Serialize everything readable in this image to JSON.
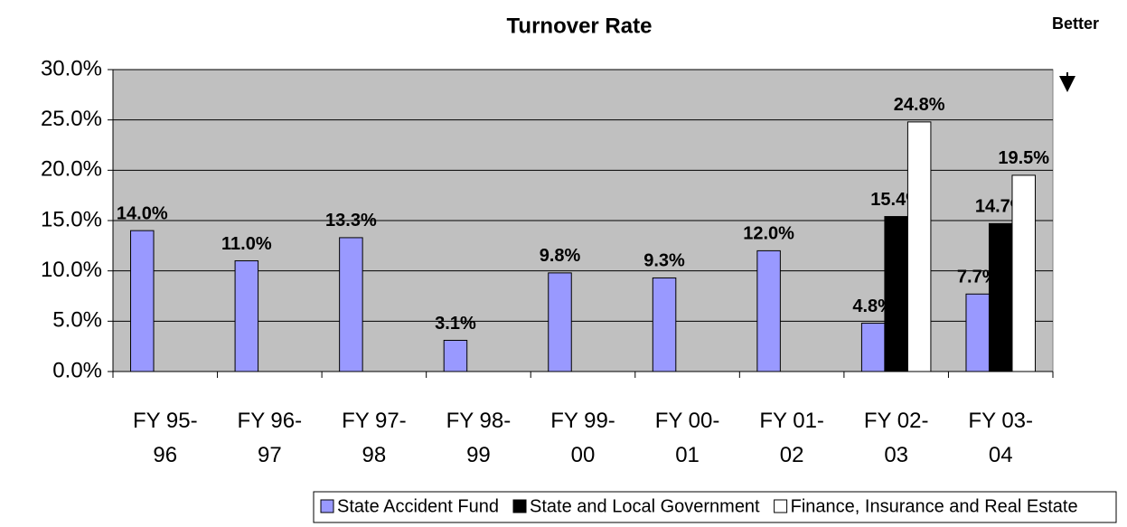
{
  "chart_data": {
    "type": "bar",
    "title": "Turnover Rate",
    "annotation": "Better",
    "categories": [
      "FY 95-96",
      "FY 96-97",
      "FY 97-98",
      "FY 98-99",
      "FY 99-00",
      "FY 00-01",
      "FY 01-02",
      "FY 02-03",
      "FY 03-04"
    ],
    "series": [
      {
        "name": "State Accident Fund",
        "color": "#9999ff",
        "values": [
          14.0,
          11.0,
          13.3,
          3.1,
          9.8,
          9.3,
          12.0,
          4.8,
          7.7
        ],
        "value_labels": [
          "14.0%",
          "11.0%",
          "13.3%",
          "3.1%",
          "9.8%",
          "9.3%",
          "12.0%",
          "4.8%",
          "7.7%"
        ]
      },
      {
        "name": "State and Local Government",
        "color": "#000000",
        "values": [
          null,
          null,
          null,
          null,
          null,
          null,
          null,
          15.4,
          14.7
        ],
        "value_labels": [
          null,
          null,
          null,
          null,
          null,
          null,
          null,
          "15.4%",
          "14.7%"
        ]
      },
      {
        "name": "Finance, Insurance and Real Estate",
        "color": "#ffffff",
        "values": [
          null,
          null,
          null,
          null,
          null,
          null,
          null,
          24.8,
          19.5
        ],
        "value_labels": [
          null,
          null,
          null,
          null,
          null,
          null,
          null,
          "24.8%",
          "19.5%"
        ]
      }
    ],
    "ylim": [
      0,
      30
    ],
    "yticks": [
      {
        "value": 0,
        "label": "0.0%"
      },
      {
        "value": 5,
        "label": "5.0%"
      },
      {
        "value": 10,
        "label": "10.0%"
      },
      {
        "value": 15,
        "label": "15.0%"
      },
      {
        "value": 20,
        "label": "20.0%"
      },
      {
        "value": 25,
        "label": "25.0%"
      },
      {
        "value": 30,
        "label": "30.0%"
      }
    ],
    "grid": true,
    "plot_background": "#c0c0c0",
    "legend": "bottom"
  }
}
